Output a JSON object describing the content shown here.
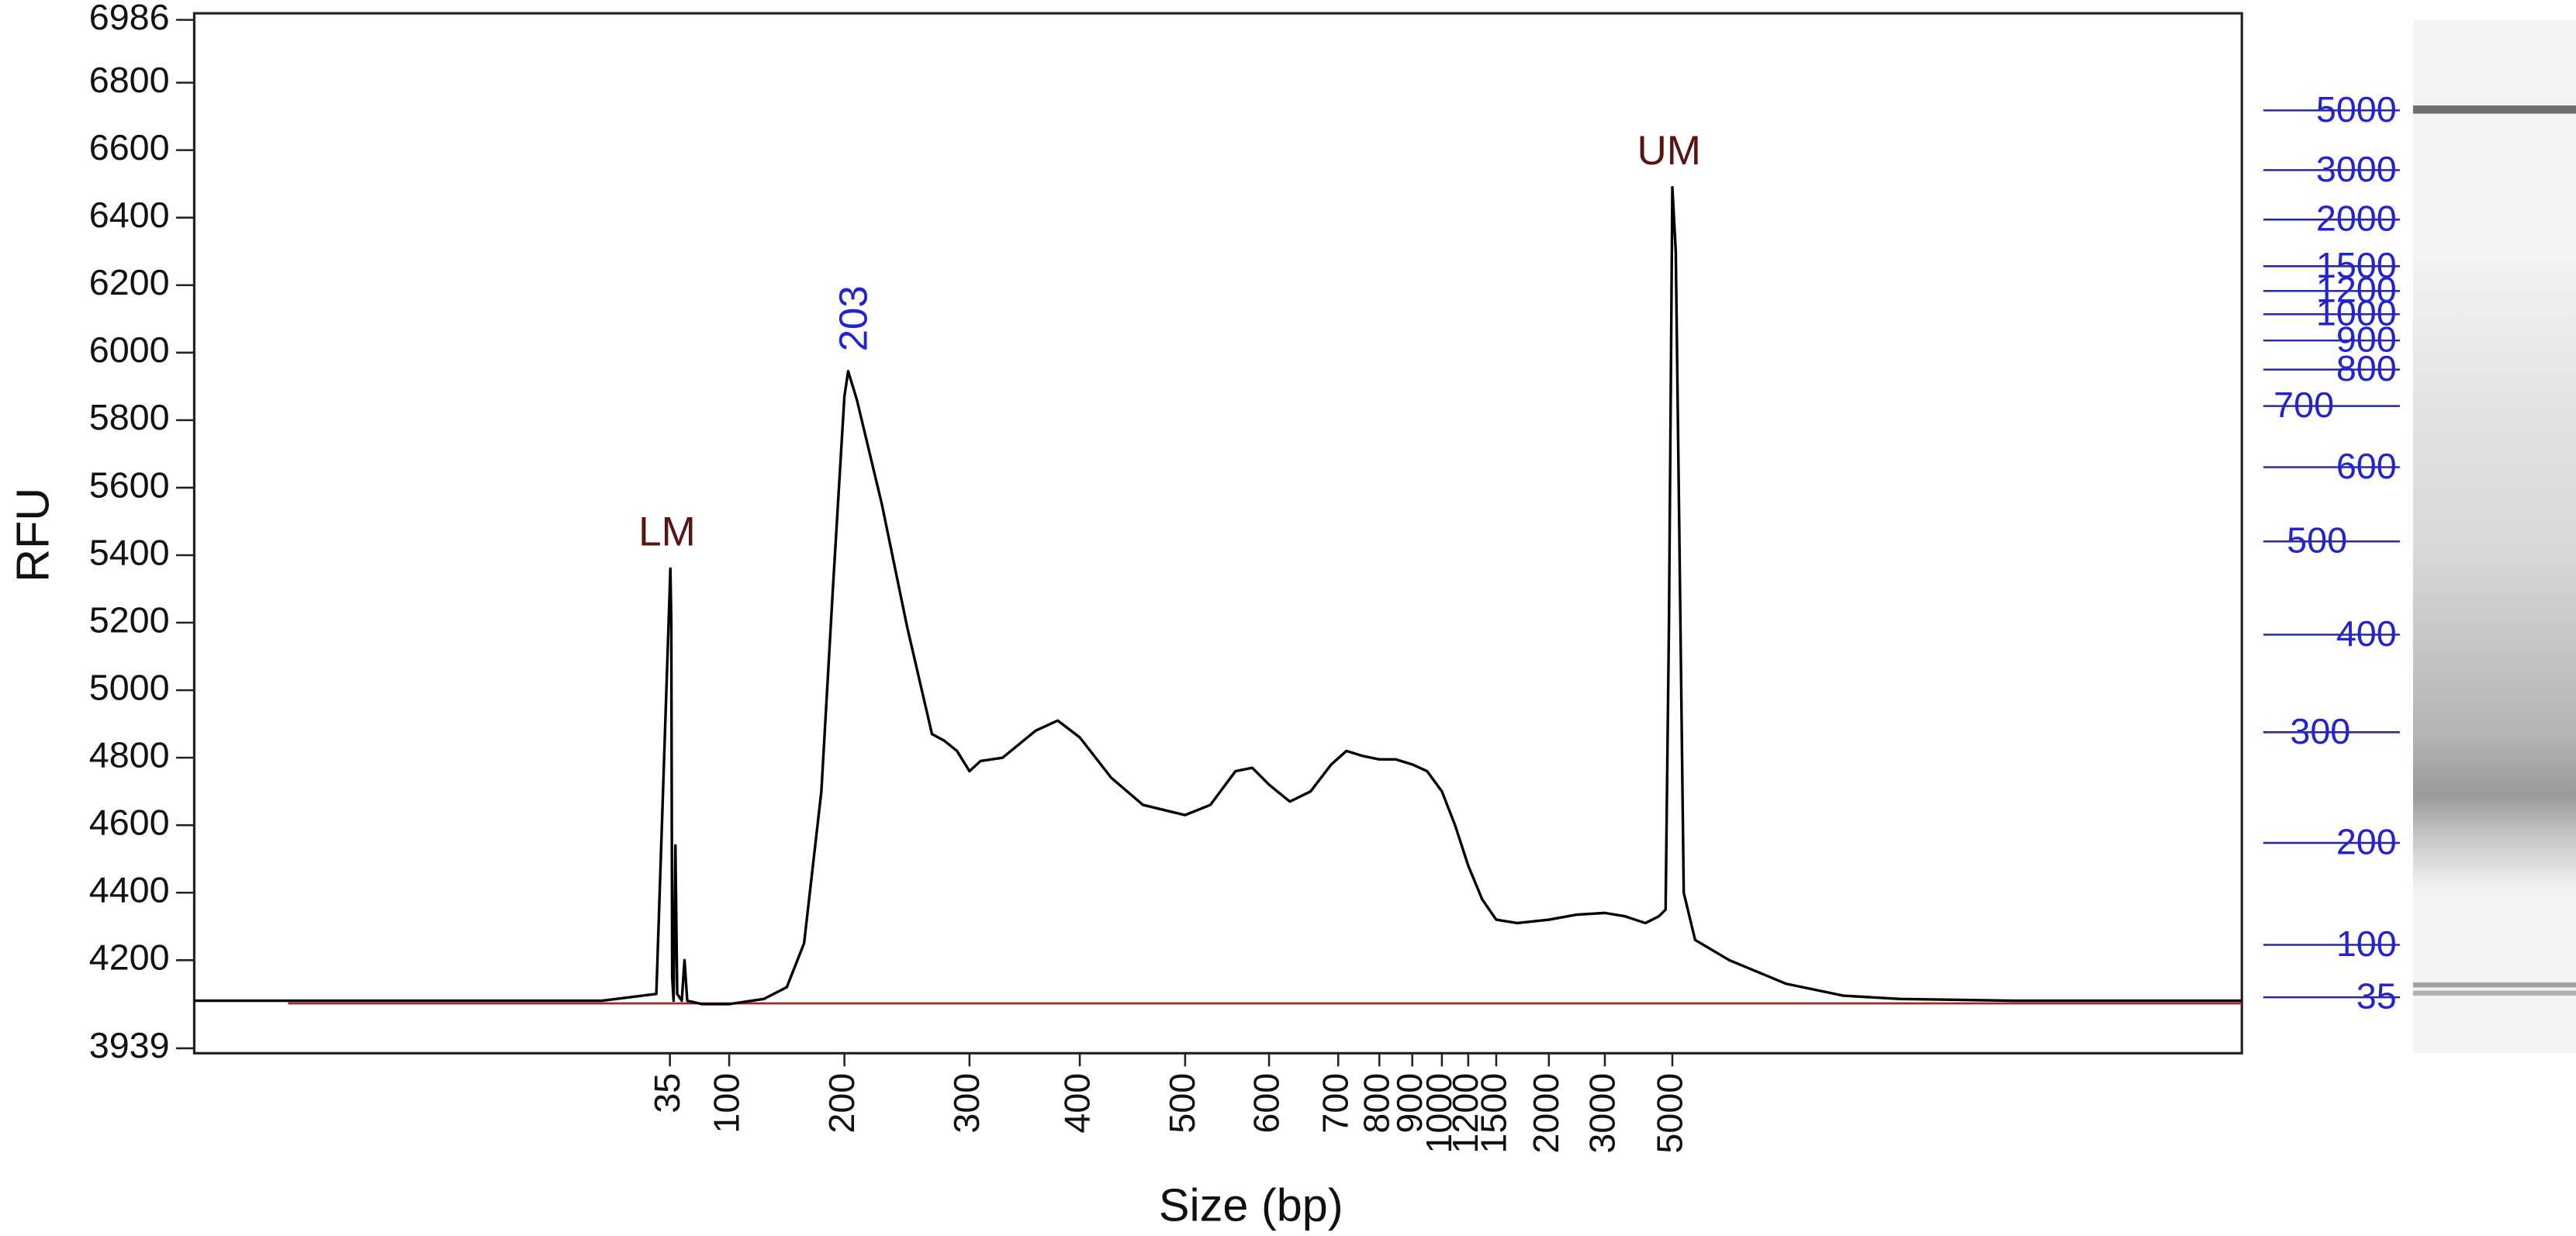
{
  "chart_data": {
    "type": "line",
    "x_label": "Size (bp)",
    "y_label": "RFU",
    "xlim": [
      0,
      10000
    ],
    "xticks": [
      35,
      100,
      200,
      300,
      400,
      500,
      600,
      700,
      800,
      900,
      1000,
      1200,
      1500,
      2000,
      3000,
      5000
    ],
    "ylim": [
      3939,
      6986
    ],
    "yticks": [
      3939,
      4200,
      4400,
      4600,
      4800,
      5000,
      5200,
      5400,
      5600,
      5800,
      6000,
      6200,
      6400,
      6600,
      6800,
      6986
    ],
    "color": "#000000",
    "baseline": 4072,
    "baseline_color": "#9b2a2a",
    "x": [
      0,
      30,
      34,
      35.5,
      36.5,
      37.5,
      39,
      41,
      43,
      48,
      51,
      54,
      70,
      100,
      130,
      150,
      165,
      180,
      190,
      200,
      203,
      210,
      230,
      250,
      270,
      280,
      290,
      300,
      310,
      330,
      360,
      380,
      400,
      430,
      460,
      500,
      530,
      560,
      580,
      600,
      630,
      660,
      690,
      720,
      760,
      800,
      850,
      900,
      950,
      1000,
      1100,
      1200,
      1350,
      1500,
      1700,
      2000,
      2500,
      3000,
      3600,
      4200,
      4600,
      4800,
      4900,
      5000,
      5030,
      5060,
      5100,
      5200,
      5500,
      6000,
      6500,
      7000,
      8000,
      10000
    ],
    "values": [
      4080,
      4080,
      4100,
      5360,
      5200,
      4150,
      4080,
      4540,
      4100,
      4080,
      4200,
      4080,
      4070,
      4070,
      4085,
      4120,
      4250,
      4700,
      5300,
      5870,
      5945,
      5860,
      5550,
      5190,
      4870,
      4850,
      4820,
      4760,
      4790,
      4800,
      4880,
      4910,
      4860,
      4740,
      4660,
      4630,
      4660,
      4760,
      4770,
      4720,
      4670,
      4700,
      4780,
      4820,
      4805,
      4795,
      4795,
      4780,
      4760,
      4700,
      4600,
      4480,
      4380,
      4320,
      4310,
      4320,
      4335,
      4340,
      4330,
      4310,
      4330,
      4350,
      5200,
      6490,
      6300,
      5500,
      4400,
      4260,
      4200,
      4130,
      4095,
      4085,
      4080,
      4080
    ],
    "peaks": [
      {
        "label": "LM",
        "x": 35.5,
        "y": 5360,
        "color": "#5a1212"
      },
      {
        "label": "203",
        "x": 203,
        "y": 5945,
        "color": "#2323d0"
      },
      {
        "label": "UM",
        "x": 5000,
        "y": 6490,
        "color": "#5a1212"
      }
    ]
  }
}
